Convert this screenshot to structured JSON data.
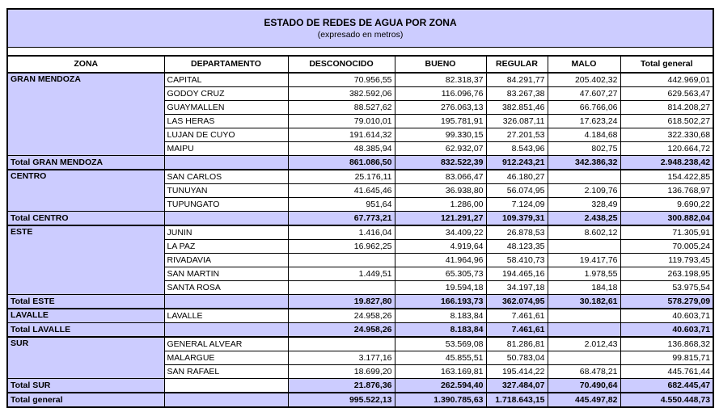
{
  "report": {
    "title": "ESTADO DE REDES DE AGUA POR ZONA",
    "subtitle": "(expresado en metros)"
  },
  "colors": {
    "highlight": "#ccccff",
    "border": "#000000",
    "cell_background": "#ffffff",
    "text": "#000000"
  },
  "table": {
    "columns": [
      "ZONA",
      "DEPARTAMENTO",
      "DESCONOCIDO",
      "BUENO",
      "REGULAR",
      "MALO",
      "Total general"
    ],
    "sections": [
      {
        "zone": "GRAN MENDOZA",
        "rows": [
          {
            "dept": "CAPITAL",
            "values": [
              "70.956,55",
              "82.318,37",
              "84.291,77",
              "205.402,32",
              "442.969,01"
            ]
          },
          {
            "dept": "GODOY CRUZ",
            "values": [
              "382.592,06",
              "116.096,76",
              "83.267,38",
              "47.607,27",
              "629.563,47"
            ]
          },
          {
            "dept": "GUAYMALLEN",
            "values": [
              "88.527,62",
              "276.063,13",
              "382.851,46",
              "66.766,06",
              "814.208,27"
            ]
          },
          {
            "dept": "LAS HERAS",
            "values": [
              "79.010,01",
              "195.781,91",
              "326.087,11",
              "17.623,24",
              "618.502,27"
            ]
          },
          {
            "dept": "LUJAN DE CUYO",
            "values": [
              "191.614,32",
              "99.330,15",
              "27.201,53",
              "4.184,68",
              "322.330,68"
            ]
          },
          {
            "dept": "MAIPU",
            "values": [
              "48.385,94",
              "62.932,07",
              "8.543,96",
              "802,75",
              "120.664,72"
            ]
          }
        ],
        "total_label": "Total GRAN MENDOZA",
        "total_dept_white": false,
        "total_values": [
          "861.086,50",
          "832.522,39",
          "912.243,21",
          "342.386,32",
          "2.948.238,42"
        ]
      },
      {
        "zone": "CENTRO",
        "rows": [
          {
            "dept": "SAN CARLOS",
            "values": [
              "25.176,11",
              "83.066,47",
              "46.180,27",
              "",
              "154.422,85"
            ]
          },
          {
            "dept": "TUNUYAN",
            "values": [
              "41.645,46",
              "36.938,80",
              "56.074,95",
              "2.109,76",
              "136.768,97"
            ]
          },
          {
            "dept": "TUPUNGATO",
            "values": [
              "951,64",
              "1.286,00",
              "7.124,09",
              "328,49",
              "9.690,22"
            ]
          }
        ],
        "total_label": "Total CENTRO",
        "total_dept_white": false,
        "total_values": [
          "67.773,21",
          "121.291,27",
          "109.379,31",
          "2.438,25",
          "300.882,04"
        ]
      },
      {
        "zone": "ESTE",
        "rows": [
          {
            "dept": "JUNIN",
            "values": [
              "1.416,04",
              "34.409,22",
              "26.878,53",
              "8.602,12",
              "71.305,91"
            ]
          },
          {
            "dept": "LA PAZ",
            "values": [
              "16.962,25",
              "4.919,64",
              "48.123,35",
              "",
              "70.005,24"
            ]
          },
          {
            "dept": "RIVADAVIA",
            "values": [
              "",
              "41.964,96",
              "58.410,73",
              "19.417,76",
              "119.793,45"
            ]
          },
          {
            "dept": "SAN MARTIN",
            "values": [
              "1.449,51",
              "65.305,73",
              "194.465,16",
              "1.978,55",
              "263.198,95"
            ]
          },
          {
            "dept": "SANTA ROSA",
            "values": [
              "",
              "19.594,18",
              "34.197,18",
              "184,18",
              "53.975,54"
            ]
          }
        ],
        "total_label": "Total ESTE",
        "total_dept_white": false,
        "total_values": [
          "19.827,80",
          "166.193,73",
          "362.074,95",
          "30.182,61",
          "578.279,09"
        ]
      },
      {
        "zone": "LAVALLE",
        "rows": [
          {
            "dept": "LAVALLE",
            "values": [
              "24.958,26",
              "8.183,84",
              "7.461,61",
              "",
              "40.603,71"
            ]
          }
        ],
        "total_label": "Total LAVALLE",
        "total_dept_white": false,
        "total_values": [
          "24.958,26",
          "8.183,84",
          "7.461,61",
          "",
          "40.603,71"
        ]
      },
      {
        "zone": "SUR",
        "rows": [
          {
            "dept": "GENERAL ALVEAR",
            "values": [
              "",
              "53.569,08",
              "81.286,81",
              "2.012,43",
              "136.868,32"
            ]
          },
          {
            "dept": "MALARGUE",
            "values": [
              "3.177,16",
              "45.855,51",
              "50.783,04",
              "",
              "99.815,71"
            ]
          },
          {
            "dept": "SAN RAFAEL",
            "values": [
              "18.699,20",
              "163.169,81",
              "195.414,22",
              "68.478,21",
              "445.761,44"
            ]
          }
        ],
        "total_label": "Total SUR",
        "total_dept_white": true,
        "total_values": [
          "21.876,36",
          "262.594,40",
          "327.484,07",
          "70.490,64",
          "682.445,47"
        ]
      }
    ],
    "grand_total": {
      "label": "Total general",
      "values": [
        "995.522,13",
        "1.390.785,63",
        "1.718.643,15",
        "445.497,82",
        "4.550.448,73"
      ]
    }
  }
}
